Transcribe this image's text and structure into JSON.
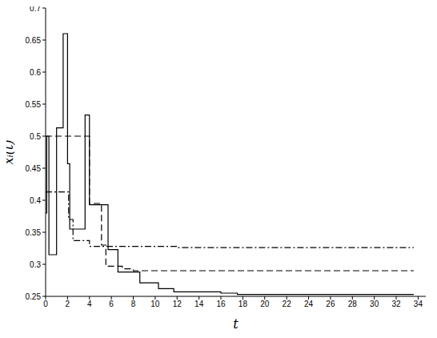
{
  "chart_data": {
    "type": "line",
    "x_label": "t",
    "y_label": "xᵢ(t)",
    "xlim": [
      0,
      34.7
    ],
    "ylim": [
      0.25,
      0.7
    ],
    "xticks": [
      0,
      2,
      4,
      6,
      8,
      10,
      12,
      14,
      16,
      18,
      20,
      22,
      24,
      26,
      28,
      30,
      32,
      34
    ],
    "yticks": [
      0.25,
      0.3,
      0.35,
      0.4,
      0.45,
      0.5,
      0.55,
      0.6,
      0.65,
      0.7
    ],
    "grid": false,
    "series": [
      {
        "color": "#000000",
        "line_style": "solid",
        "x": [
          0,
          0.1,
          0.3,
          1.0,
          1.6,
          2.0,
          2.2,
          3.6,
          4.0,
          5.7,
          6.6,
          8.6,
          10.3,
          11.7,
          16.0,
          17.5,
          33.6
        ],
        "values": [
          0.38,
          0.5,
          0.315,
          0.513,
          0.66,
          0.457,
          0.355,
          0.533,
          0.393,
          0.323,
          0.288,
          0.271,
          0.262,
          0.257,
          0.255,
          0.253,
          0.253
        ]
      },
      {
        "color": "#000000",
        "line_style": "dashed",
        "x": [
          0,
          4.0,
          5.1,
          5.5,
          7.0,
          8.0,
          33.6
        ],
        "values": [
          0.5,
          0.395,
          0.33,
          0.297,
          0.293,
          0.29,
          0.29
        ]
      },
      {
        "color": "#000000",
        "line_style": "dashdot",
        "x": [
          0,
          2.1,
          2.5,
          4.0,
          12.0,
          33.6
        ],
        "values": [
          0.413,
          0.37,
          0.337,
          0.328,
          0.326,
          0.326
        ]
      }
    ]
  }
}
